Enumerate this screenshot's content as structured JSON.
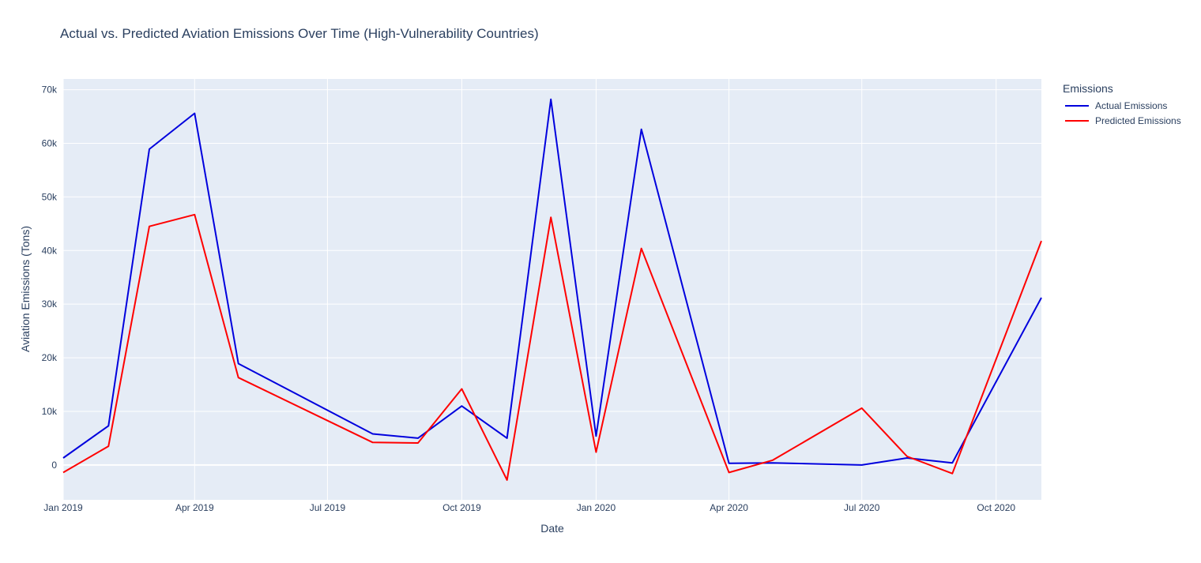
{
  "chart_data": {
    "type": "line",
    "title": "Actual vs. Predicted Aviation Emissions Over Time (High-Vulnerability Countries)",
    "xlabel": "Date",
    "ylabel": "Aviation Emissions (Tons)",
    "x_range": [
      "2019-01-01",
      "2020-11-01"
    ],
    "ylim": [
      -6500,
      72000
    ],
    "x_ticks": [
      {
        "date": "2019-01-01",
        "label": "Jan 2019"
      },
      {
        "date": "2019-04-01",
        "label": "Apr 2019"
      },
      {
        "date": "2019-07-01",
        "label": "Jul 2019"
      },
      {
        "date": "2019-10-01",
        "label": "Oct 2019"
      },
      {
        "date": "2020-01-01",
        "label": "Jan 2020"
      },
      {
        "date": "2020-04-01",
        "label": "Apr 2020"
      },
      {
        "date": "2020-07-01",
        "label": "Jul 2020"
      },
      {
        "date": "2020-10-01",
        "label": "Oct 2020"
      }
    ],
    "y_ticks": [
      {
        "value": 0,
        "label": "0"
      },
      {
        "value": 10000,
        "label": "10k"
      },
      {
        "value": 20000,
        "label": "20k"
      },
      {
        "value": 30000,
        "label": "30k"
      },
      {
        "value": 40000,
        "label": "40k"
      },
      {
        "value": 50000,
        "label": "50k"
      },
      {
        "value": 60000,
        "label": "60k"
      },
      {
        "value": 70000,
        "label": "70k"
      }
    ],
    "legend_title": "Emissions",
    "legend_position": "top-right",
    "series": [
      {
        "name": "Actual Emissions",
        "color": "#0000dd",
        "points": [
          [
            "2019-01-01",
            1300
          ],
          [
            "2019-02-01",
            7300
          ],
          [
            "2019-03-01",
            58900
          ],
          [
            "2019-04-01",
            65600
          ],
          [
            "2019-05-01",
            18900
          ],
          [
            "2019-08-01",
            5800
          ],
          [
            "2019-09-01",
            5000
          ],
          [
            "2019-10-01",
            11000
          ],
          [
            "2019-11-01",
            5000
          ],
          [
            "2019-12-01",
            68200
          ],
          [
            "2020-01-01",
            5400
          ],
          [
            "2020-02-01",
            62600
          ],
          [
            "2020-04-01",
            300
          ],
          [
            "2020-05-01",
            400
          ],
          [
            "2020-07-01",
            0
          ],
          [
            "2020-08-01",
            1300
          ],
          [
            "2020-09-01",
            400
          ],
          [
            "2020-11-01",
            31200
          ]
        ]
      },
      {
        "name": "Predicted Emissions",
        "color": "#ff0000",
        "points": [
          [
            "2019-01-01",
            -1400
          ],
          [
            "2019-02-01",
            3500
          ],
          [
            "2019-03-01",
            44500
          ],
          [
            "2019-04-01",
            46700
          ],
          [
            "2019-05-01",
            16300
          ],
          [
            "2019-08-01",
            4200
          ],
          [
            "2019-09-01",
            4100
          ],
          [
            "2019-10-01",
            14200
          ],
          [
            "2019-11-01",
            -2800
          ],
          [
            "2019-12-01",
            46200
          ],
          [
            "2020-01-01",
            2400
          ],
          [
            "2020-02-01",
            40400
          ],
          [
            "2020-04-01",
            -1400
          ],
          [
            "2020-05-01",
            900
          ],
          [
            "2020-07-01",
            10600
          ],
          [
            "2020-08-01",
            1600
          ],
          [
            "2020-09-01",
            -1600
          ],
          [
            "2020-11-01",
            41800
          ]
        ]
      }
    ]
  }
}
